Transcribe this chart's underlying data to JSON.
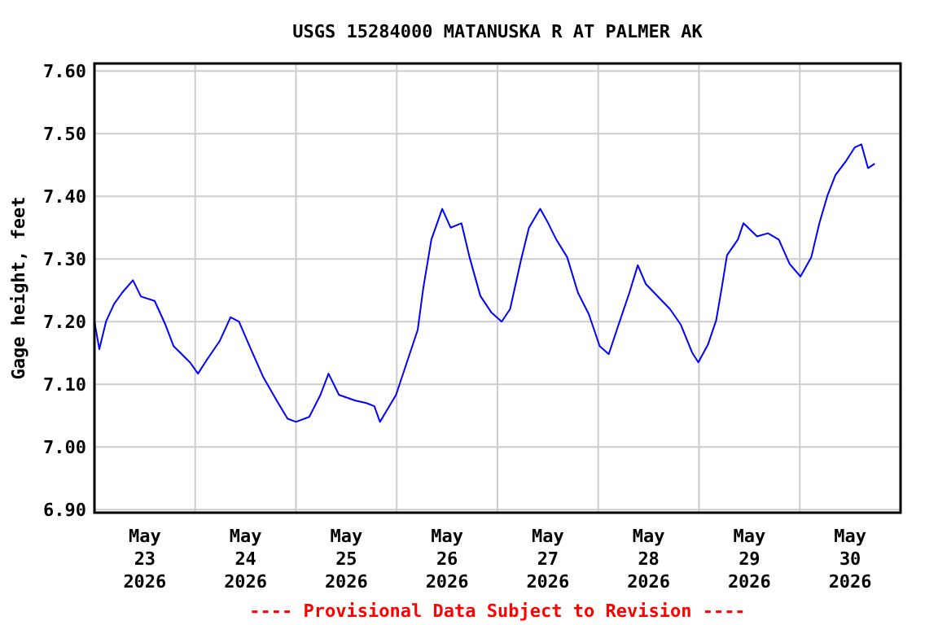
{
  "chart_data": {
    "type": "line",
    "title": "USGS 15284000 MATANUSKA R AT PALMER AK",
    "ylabel": "Gage height, feet",
    "annotations": [
      "---- Provisional Data Subject to Revision ----"
    ],
    "xlim": [
      "2026-05-23T00:00",
      "2026-05-31T00:00"
    ],
    "xticks": [
      {
        "value": "2026-05-23T12:00",
        "label": "May\n23\n2026"
      },
      {
        "value": "2026-05-24T00:00",
        "label": null
      },
      {
        "value": "2026-05-24T12:00",
        "label": "May\n24\n2026"
      },
      {
        "value": "2026-05-25T00:00",
        "label": null
      },
      {
        "value": "2026-05-25T12:00",
        "label": "May\n25\n2026"
      },
      {
        "value": "2026-05-26T00:00",
        "label": null
      },
      {
        "value": "2026-05-26T12:00",
        "label": "May\n26\n2026"
      },
      {
        "value": "2026-05-27T00:00",
        "label": null
      },
      {
        "value": "2026-05-27T12:00",
        "label": "May\n27\n2026"
      },
      {
        "value": "2026-05-28T00:00",
        "label": null
      },
      {
        "value": "2026-05-28T12:00",
        "label": "May\n28\n2026"
      },
      {
        "value": "2026-05-29T00:00",
        "label": null
      },
      {
        "value": "2026-05-29T12:00",
        "label": "May\n29\n2026"
      },
      {
        "value": "2026-05-30T00:00",
        "label": null
      },
      {
        "value": "2026-05-30T12:00",
        "label": "May\n30\n2026"
      }
    ],
    "ylim": [
      6.895,
      7.612
    ],
    "yticks": [
      {
        "value": 6.9,
        "label": "6.90"
      },
      {
        "value": 7.0,
        "label": "7.00"
      },
      {
        "value": 7.1,
        "label": "7.10"
      },
      {
        "value": 7.2,
        "label": "7.20"
      },
      {
        "value": 7.3,
        "label": "7.30"
      },
      {
        "value": 7.4,
        "label": "7.40"
      },
      {
        "value": 7.5,
        "label": "7.50"
      },
      {
        "value": 7.6,
        "label": "7.60"
      }
    ],
    "grid": true,
    "marker": "none",
    "line_style": "solid",
    "x": [
      "2026-05-23T00:00",
      "2026-05-23T01:10",
      "2026-05-23T02:45",
      "2026-05-23T04:40",
      "2026-05-23T06:35",
      "2026-05-23T09:10",
      "2026-05-23T11:05",
      "2026-05-23T14:20",
      "2026-05-23T16:55",
      "2026-05-23T18:50",
      "2026-05-23T22:45",
      "2026-05-24T00:40",
      "2026-05-24T02:40",
      "2026-05-24T05:50",
      "2026-05-24T08:25",
      "2026-05-24T10:25",
      "2026-05-24T13:35",
      "2026-05-24T16:10",
      "2026-05-24T19:25",
      "2026-05-24T22:00",
      "2026-05-25T00:00",
      "2026-05-25T03:10",
      "2026-05-25T05:50",
      "2026-05-25T07:45",
      "2026-05-25T10:15",
      "2026-05-25T14:10",
      "2026-05-25T16:45",
      "2026-05-25T18:40",
      "2026-05-25T20:00",
      "2026-05-25T23:50",
      "2026-05-26T02:25",
      "2026-05-26T05:00",
      "2026-05-26T06:20",
      "2026-05-26T08:15",
      "2026-05-26T10:50",
      "2026-05-26T12:50",
      "2026-05-26T15:25",
      "2026-05-26T17:20",
      "2026-05-26T19:55",
      "2026-05-26T22:30",
      "2026-05-27T01:00",
      "2026-05-27T03:00",
      "2026-05-27T05:35",
      "2026-05-27T07:30",
      "2026-05-27T10:10",
      "2026-05-27T12:05",
      "2026-05-27T14:00",
      "2026-05-27T16:35",
      "2026-05-27T19:10",
      "2026-05-27T21:45",
      "2026-05-28T00:20",
      "2026-05-28T02:30",
      "2026-05-28T04:50",
      "2026-05-28T07:25",
      "2026-05-28T09:25",
      "2026-05-28T11:20",
      "2026-05-28T14:30",
      "2026-05-28T17:05",
      "2026-05-28T19:40",
      "2026-05-28T22:20",
      "2026-05-28T23:50",
      "2026-05-29T02:10",
      "2026-05-29T04:05",
      "2026-05-29T05:25",
      "2026-05-29T06:40",
      "2026-05-29T09:15",
      "2026-05-29T10:35",
      "2026-05-29T13:50",
      "2026-05-29T16:25",
      "2026-05-29T19:00",
      "2026-05-29T21:35",
      "2026-05-30T00:10",
      "2026-05-30T02:45",
      "2026-05-30T04:40",
      "2026-05-30T06:35",
      "2026-05-30T08:30",
      "2026-05-30T11:05",
      "2026-05-30T13:05",
      "2026-05-30T14:40",
      "2026-05-30T16:15",
      "2026-05-30T17:50"
    ],
    "series": [
      {
        "color": "#0000ff",
        "values": [
          7.2,
          7.156,
          7.2,
          7.228,
          7.246,
          7.266,
          7.24,
          7.233,
          7.195,
          7.161,
          7.135,
          7.117,
          7.138,
          7.169,
          7.207,
          7.2,
          7.151,
          7.112,
          7.074,
          7.045,
          7.04,
          7.048,
          7.083,
          7.117,
          7.083,
          7.074,
          7.07,
          7.065,
          7.04,
          7.083,
          7.135,
          7.187,
          7.254,
          7.331,
          7.38,
          7.35,
          7.357,
          7.303,
          7.241,
          7.215,
          7.2,
          7.22,
          7.298,
          7.35,
          7.38,
          7.357,
          7.331,
          7.303,
          7.246,
          7.212,
          7.161,
          7.148,
          7.195,
          7.246,
          7.29,
          7.26,
          7.238,
          7.22,
          7.195,
          7.151,
          7.135,
          7.164,
          7.202,
          7.254,
          7.306,
          7.331,
          7.357,
          7.336,
          7.341,
          7.331,
          7.292,
          7.272,
          7.303,
          7.357,
          7.401,
          7.434,
          7.457,
          7.478,
          7.483,
          7.445,
          7.452
        ]
      }
    ]
  }
}
